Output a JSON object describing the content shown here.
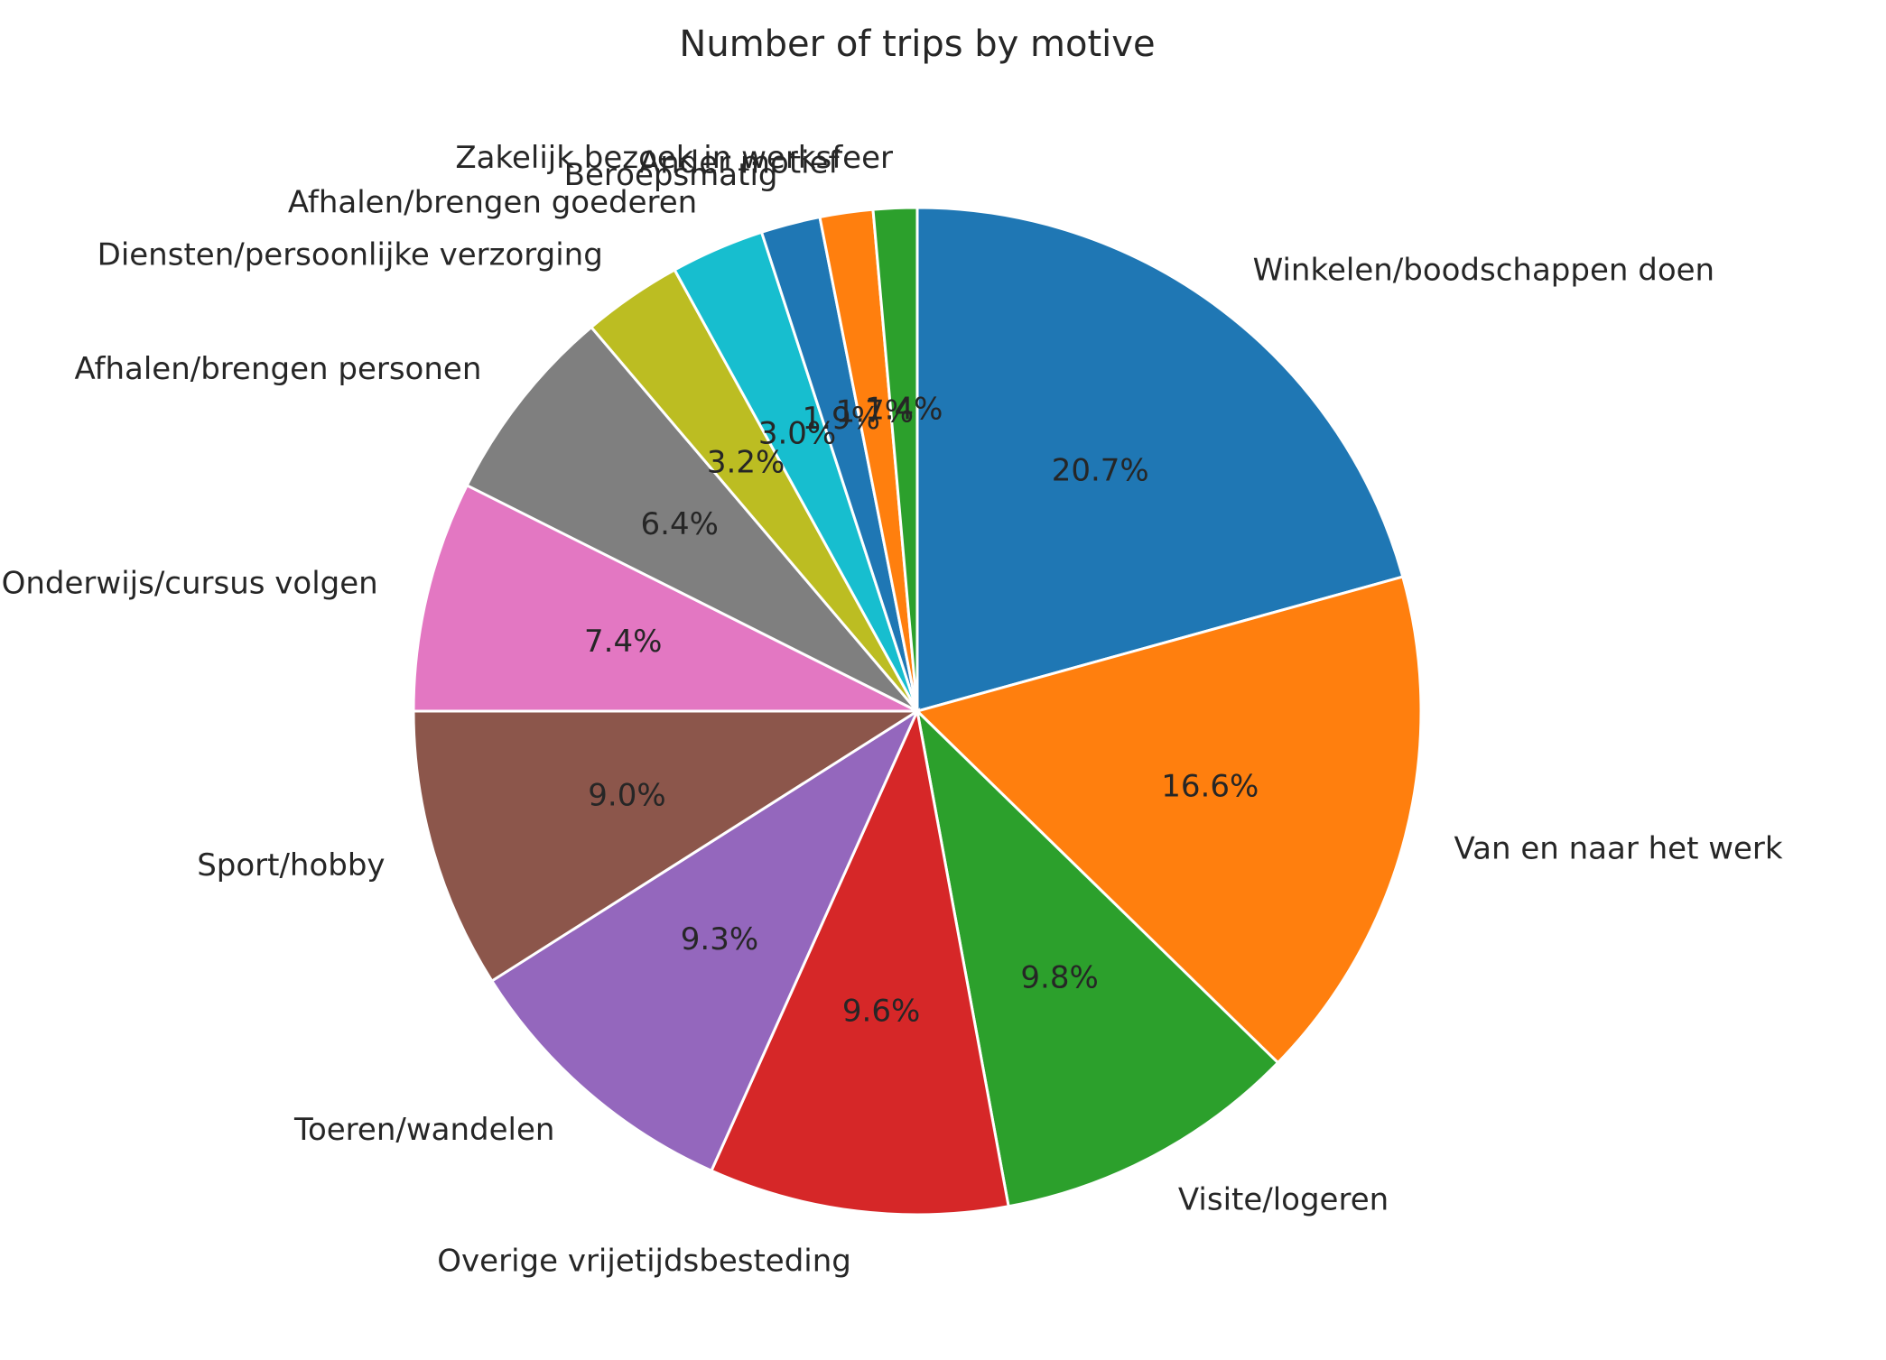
{
  "chart_data": {
    "type": "pie",
    "title": "Number of trips by motive",
    "start_angle_deg": 90,
    "direction": "clockwise",
    "slices": [
      {
        "label": "Winkelen/boodschappen doen",
        "value": 20.7,
        "pct_label": "20.7%",
        "color": "#1f77b4"
      },
      {
        "label": "Van en naar het werk",
        "value": 16.6,
        "pct_label": "16.6%",
        "color": "#ff7f0e"
      },
      {
        "label": "Visite/logeren",
        "value": 9.8,
        "pct_label": "9.8%",
        "color": "#2ca02c"
      },
      {
        "label": "Overige vrijetijdsbesteding",
        "value": 9.6,
        "pct_label": "9.6%",
        "color": "#d62728"
      },
      {
        "label": "Toeren/wandelen",
        "value": 9.3,
        "pct_label": "9.3%",
        "color": "#9467bd"
      },
      {
        "label": "Sport/hobby",
        "value": 9.0,
        "pct_label": "9.0%",
        "color": "#8c564b"
      },
      {
        "label": "Onderwijs/cursus volgen",
        "value": 7.4,
        "pct_label": "7.4%",
        "color": "#e377c2"
      },
      {
        "label": "Afhalen/brengen personen",
        "value": 6.4,
        "pct_label": "6.4%",
        "color": "#7f7f7f"
      },
      {
        "label": "Diensten/persoonlijke verzorging",
        "value": 3.2,
        "pct_label": "3.2%",
        "color": "#bcbd22"
      },
      {
        "label": "Afhalen/brengen goederen",
        "value": 3.0,
        "pct_label": "3.0%",
        "color": "#17becf"
      },
      {
        "label": "Beroepsmatig",
        "value": 1.9,
        "pct_label": "1.9%",
        "color": "#1f77b4"
      },
      {
        "label": "Ander motief",
        "value": 1.7,
        "pct_label": "1.7%",
        "color": "#ff7f0e"
      },
      {
        "label": "Zakelijk bezoek in werksfeer",
        "value": 1.4,
        "pct_label": "1.4%",
        "color": "#2ca02c"
      }
    ]
  }
}
